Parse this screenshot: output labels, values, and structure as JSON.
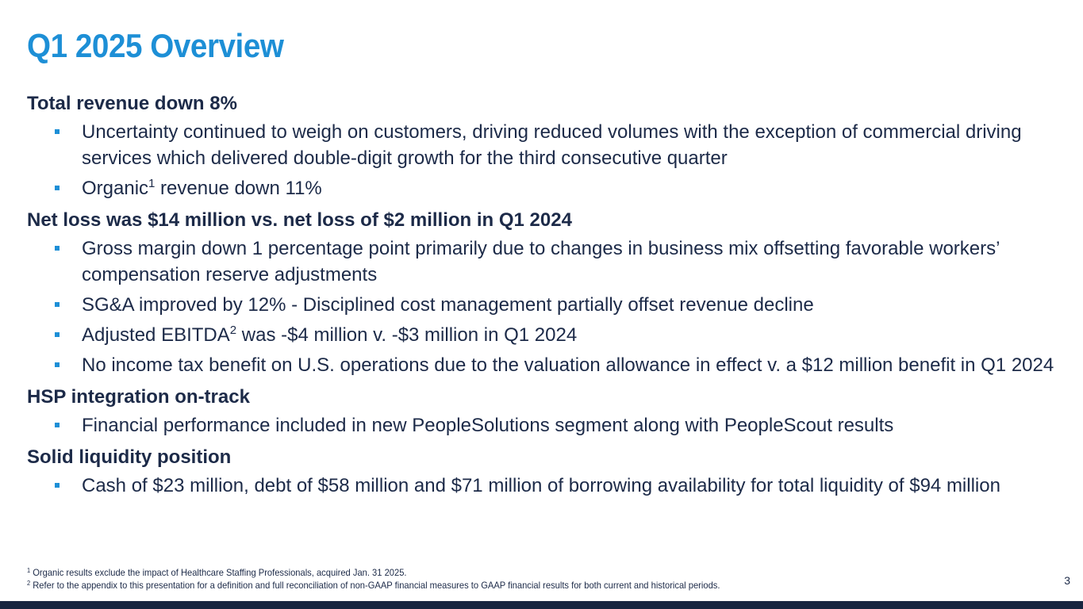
{
  "title": "Q1 2025 Overview",
  "sections": [
    {
      "heading": "Total revenue down 8%",
      "bullets": [
        {
          "text": "Uncertainty continued to weigh on customers, driving reduced volumes with the exception of commercial driving services which delivered double-digit growth for the third consecutive quarter"
        },
        {
          "text_before": "Organic",
          "superscript": "1",
          "text_after": " revenue down 11%"
        }
      ]
    },
    {
      "heading": "Net loss was $14 million vs. net loss of $2 million in Q1 2024",
      "bullets": [
        {
          "text": "Gross margin down 1 percentage point primarily due to changes in business mix offsetting favorable workers’ compensation reserve adjustments"
        },
        {
          "text": "SG&A improved by 12% - Disciplined cost management partially offset revenue decline"
        },
        {
          "text_before": "Adjusted EBITDA",
          "superscript": "2",
          "text_after": " was -$4 million v. -$3 million in Q1 2024"
        },
        {
          "text": "No income tax benefit on U.S. operations due to the valuation allowance in effect v. a $12 million benefit in Q1 2024"
        }
      ]
    },
    {
      "heading": "HSP integration on-track",
      "bullets": [
        {
          "text": "Financial performance included in new PeopleSolutions segment along with PeopleScout results"
        }
      ]
    },
    {
      "heading": "Solid liquidity position",
      "bullets": [
        {
          "text": "Cash of $23 million, debt of $58 million and $71 million of borrowing availability for total liquidity of $94 million"
        }
      ]
    }
  ],
  "footnotes": [
    {
      "marker": "1",
      "text": " Organic results exclude the impact of Healthcare Staffing Professionals, acquired Jan. 31 2025."
    },
    {
      "marker": "2",
      "text": " Refer to the appendix to this presentation for a definition and full reconciliation of non-GAAP financial measures to GAAP financial results for both current and historical periods."
    }
  ],
  "page_number": "3",
  "colors": {
    "title": "#1d8fd6",
    "text": "#1c2a48",
    "bullet_marker": "#1d8fd6",
    "bottom_bar": "#172540"
  }
}
